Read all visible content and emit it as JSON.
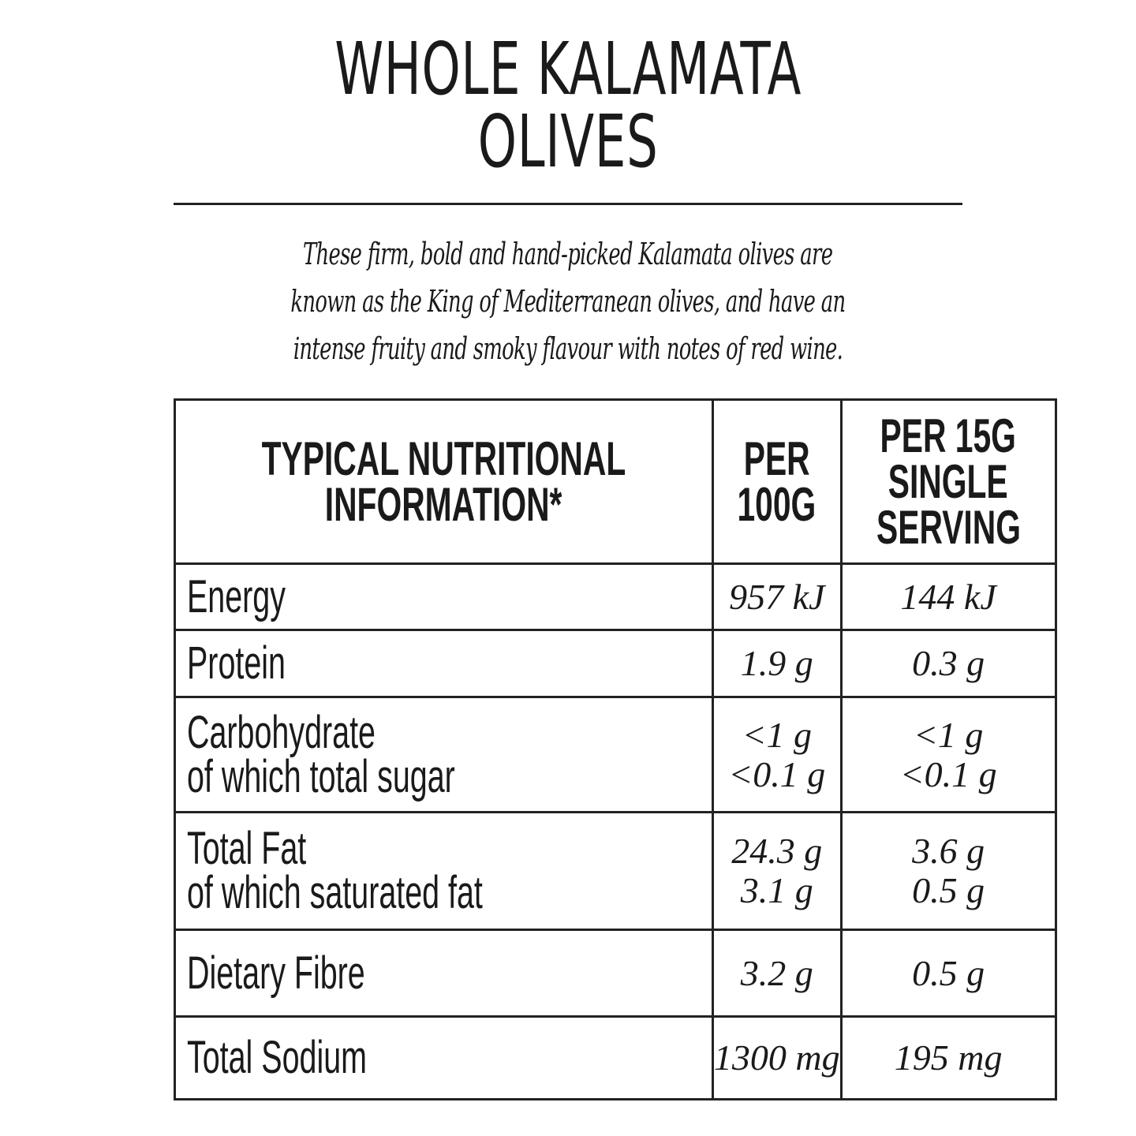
{
  "title": [
    "WHOLE KALAMATA",
    "OLIVES"
  ],
  "description": [
    "These firm, bold and hand-picked Kalamata olives are",
    "known as the King of Mediterranean olives, and have an",
    "intense fruity and smoky flavour with notes of red wine."
  ],
  "table": {
    "header": [
      [
        "TYPICAL NUTRITIONAL",
        "INFORMATION*"
      ],
      [
        "PER",
        "100G"
      ],
      [
        "PER 15G",
        "SINGLE",
        "SERVING"
      ]
    ],
    "rows": [
      [
        [
          "Energy"
        ],
        [
          "957 kJ"
        ],
        [
          "144 kJ"
        ]
      ],
      [
        [
          "Protein"
        ],
        [
          "1.9 g"
        ],
        [
          "0.3 g"
        ]
      ],
      [
        [
          "Carbohydrate",
          "of which total sugar"
        ],
        [
          "<1 g",
          "<0.1 g"
        ],
        [
          "<1 g",
          "<0.1 g"
        ]
      ],
      [
        [
          "Total Fat",
          "of which saturated fat"
        ],
        [
          "24.3 g",
          "3.1 g"
        ],
        [
          "3.6 g",
          "0.5 g"
        ]
      ],
      [
        [
          "Dietary Fibre"
        ],
        [
          "3.2 g"
        ],
        [
          "0.5 g"
        ]
      ],
      [
        [
          "Total Sodium"
        ],
        [
          "1300 mg"
        ],
        [
          "195 mg"
        ]
      ]
    ]
  }
}
